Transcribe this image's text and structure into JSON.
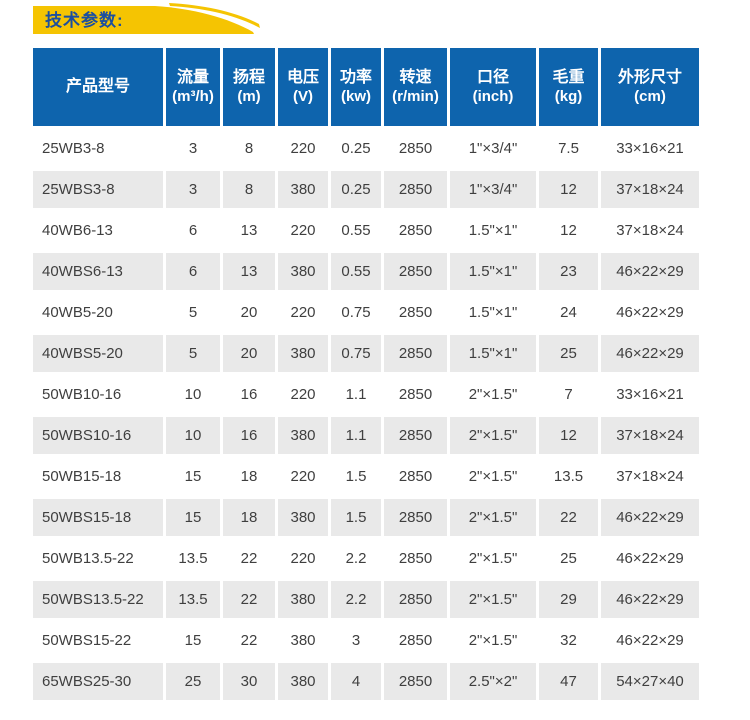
{
  "page": {
    "title": "技术参数:"
  },
  "colors": {
    "header_bg": "#0E64AD",
    "banner_yellow": "#F5C402",
    "title_text": "#1B4FA0",
    "row_alt": "#E9E9E9",
    "cell_text": "#3F3F3F"
  },
  "table": {
    "keys": [
      "model",
      "flow",
      "head",
      "voltage",
      "power",
      "speed",
      "caliber",
      "weight",
      "dimensions"
    ],
    "headers": [
      {
        "label": "产品型号",
        "sub": ""
      },
      {
        "label": "流量",
        "sub": "(m³/h)"
      },
      {
        "label": "扬程",
        "sub": "(m)"
      },
      {
        "label": "电压",
        "sub": "(V)"
      },
      {
        "label": "功率",
        "sub": "(kw)"
      },
      {
        "label": "转速",
        "sub": "(r/min)"
      },
      {
        "label": "口径",
        "sub": "(inch)"
      },
      {
        "label": "毛重",
        "sub": "(kg)"
      },
      {
        "label": "外形尺寸",
        "sub": "(cm)"
      }
    ],
    "rows": [
      [
        "25WB3-8",
        "3",
        "8",
        "220",
        "0.25",
        "2850",
        "1\"×3/4\"",
        "7.5",
        "33×16×21"
      ],
      [
        "25WBS3-8",
        "3",
        "8",
        "380",
        "0.25",
        "2850",
        "1\"×3/4\"",
        "12",
        "37×18×24"
      ],
      [
        "40WB6-13",
        "6",
        "13",
        "220",
        "0.55",
        "2850",
        "1.5\"×1\"",
        "12",
        "37×18×24"
      ],
      [
        "40WBS6-13",
        "6",
        "13",
        "380",
        "0.55",
        "2850",
        "1.5\"×1\"",
        "23",
        "46×22×29"
      ],
      [
        "40WB5-20",
        "5",
        "20",
        "220",
        "0.75",
        "2850",
        "1.5\"×1\"",
        "24",
        "46×22×29"
      ],
      [
        "40WBS5-20",
        "5",
        "20",
        "380",
        "0.75",
        "2850",
        "1.5\"×1\"",
        "25",
        "46×22×29"
      ],
      [
        "50WB10-16",
        "10",
        "16",
        "220",
        "1.1",
        "2850",
        "2\"×1.5\"",
        "7",
        "33×16×21"
      ],
      [
        "50WBS10-16",
        "10",
        "16",
        "380",
        "1.1",
        "2850",
        "2\"×1.5\"",
        "12",
        "37×18×24"
      ],
      [
        "50WB15-18",
        "15",
        "18",
        "220",
        "1.5",
        "2850",
        "2\"×1.5\"",
        "13.5",
        "37×18×24"
      ],
      [
        "50WBS15-18",
        "15",
        "18",
        "380",
        "1.5",
        "2850",
        "2\"×1.5\"",
        "22",
        "46×22×29"
      ],
      [
        "50WB13.5-22",
        "13.5",
        "22",
        "220",
        "2.2",
        "2850",
        "2\"×1.5\"",
        "25",
        "46×22×29"
      ],
      [
        "50WBS13.5-22",
        "13.5",
        "22",
        "380",
        "2.2",
        "2850",
        "2\"×1.5\"",
        "29",
        "46×22×29"
      ],
      [
        "50WBS15-22",
        "15",
        "22",
        "380",
        "3",
        "2850",
        "2\"×1.5\"",
        "32",
        "46×22×29"
      ],
      [
        "65WBS25-30",
        "25",
        "30",
        "380",
        "4",
        "2850",
        "2.5\"×2\"",
        "47",
        "54×27×40"
      ]
    ]
  }
}
